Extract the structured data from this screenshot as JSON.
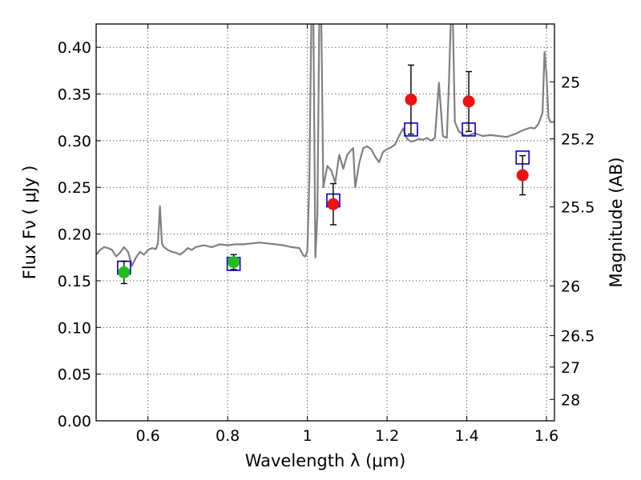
{
  "chart_data": {
    "type": "scatter",
    "xlabel": "Wavelength  λ (μm)",
    "ylabel": "Flux  Fν  ( μJy )",
    "y2label": "Magnitude (AB)",
    "xlim": [
      0.47,
      1.62
    ],
    "ylim": [
      0.0,
      0.425
    ],
    "grid": true,
    "x_ticks": [
      0.6,
      0.8,
      1.0,
      1.2,
      1.4,
      1.6
    ],
    "x_tick_labels": [
      "0.6",
      "0.8",
      "1",
      "1.2",
      "1.4",
      "1.6"
    ],
    "y_ticks": [
      0.0,
      0.05,
      0.1,
      0.15,
      0.2,
      0.25,
      0.3,
      0.35,
      0.4
    ],
    "y_tick_labels": [
      "0.00",
      "0.05",
      "0.10",
      "0.15",
      "0.20",
      "0.25",
      "0.30",
      "0.35",
      "0.40"
    ],
    "mag_ticks": [
      25,
      25.2,
      25.5,
      26,
      26.5,
      27,
      28
    ],
    "mag_tick_labels": [
      "25",
      "25.2",
      "25.5",
      "26",
      "26.5",
      "27",
      "28"
    ],
    "colors": {
      "model": "#808080",
      "green": "#22bb22",
      "red": "#ee1111",
      "square": "#0000cc"
    },
    "series": [
      {
        "name": "model spectrum",
        "kind": "line",
        "x": [
          0.47,
          0.48,
          0.49,
          0.5,
          0.51,
          0.52,
          0.53,
          0.54,
          0.55,
          0.56,
          0.57,
          0.58,
          0.59,
          0.6,
          0.61,
          0.62,
          0.625,
          0.63,
          0.635,
          0.64,
          0.65,
          0.66,
          0.67,
          0.68,
          0.69,
          0.7,
          0.71,
          0.72,
          0.74,
          0.76,
          0.78,
          0.8,
          0.82,
          0.84,
          0.86,
          0.88,
          0.9,
          0.92,
          0.94,
          0.96,
          0.98,
          0.99,
          0.995,
          1.0,
          1.005,
          1.01,
          1.015,
          1.02,
          1.025,
          1.03,
          1.035,
          1.04,
          1.05,
          1.06,
          1.07,
          1.08,
          1.09,
          1.1,
          1.11,
          1.115,
          1.12,
          1.13,
          1.14,
          1.15,
          1.16,
          1.17,
          1.18,
          1.19,
          1.2,
          1.21,
          1.22,
          1.23,
          1.24,
          1.25,
          1.26,
          1.27,
          1.28,
          1.29,
          1.3,
          1.31,
          1.32,
          1.33,
          1.34,
          1.35,
          1.355,
          1.36,
          1.365,
          1.37,
          1.38,
          1.39,
          1.4,
          1.42,
          1.44,
          1.46,
          1.48,
          1.5,
          1.52,
          1.54,
          1.56,
          1.57,
          1.58,
          1.59,
          1.595,
          1.6,
          1.605,
          1.61,
          1.62
        ],
        "y": [
          0.178,
          0.183,
          0.186,
          0.185,
          0.183,
          0.176,
          0.18,
          0.186,
          0.181,
          0.166,
          0.175,
          0.181,
          0.178,
          0.183,
          0.185,
          0.184,
          0.19,
          0.23,
          0.19,
          0.186,
          0.183,
          0.181,
          0.18,
          0.178,
          0.181,
          0.185,
          0.183,
          0.186,
          0.188,
          0.186,
          0.189,
          0.188,
          0.189,
          0.189,
          0.19,
          0.191,
          0.19,
          0.189,
          0.188,
          0.186,
          0.185,
          0.177,
          0.176,
          0.182,
          0.26,
          0.43,
          0.43,
          0.175,
          0.22,
          0.43,
          0.43,
          0.25,
          0.273,
          0.268,
          0.255,
          0.285,
          0.27,
          0.285,
          0.29,
          0.292,
          0.25,
          0.276,
          0.292,
          0.294,
          0.291,
          0.283,
          0.277,
          0.288,
          0.291,
          0.293,
          0.296,
          0.305,
          0.313,
          0.302,
          0.299,
          0.3,
          0.302,
          0.301,
          0.303,
          0.3,
          0.303,
          0.362,
          0.305,
          0.303,
          0.36,
          0.43,
          0.43,
          0.32,
          0.31,
          0.307,
          0.305,
          0.308,
          0.305,
          0.306,
          0.305,
          0.304,
          0.307,
          0.311,
          0.314,
          0.313,
          0.318,
          0.33,
          0.395,
          0.37,
          0.325,
          0.32,
          0.32
        ]
      },
      {
        "name": "green photometry",
        "kind": "points",
        "x": [
          0.54,
          0.815
        ],
        "y": [
          0.159,
          0.17
        ],
        "err": [
          0.012,
          0.008
        ]
      },
      {
        "name": "red photometry",
        "kind": "points",
        "x": [
          1.065,
          1.26,
          1.405,
          1.54
        ],
        "y": [
          0.232,
          0.344,
          0.342,
          0.263
        ],
        "err": [
          0.022,
          0.037,
          0.032,
          0.021
        ]
      },
      {
        "name": "model photometry",
        "kind": "squares",
        "x": [
          0.54,
          0.815,
          1.065,
          1.26,
          1.405,
          1.54
        ],
        "y": [
          0.164,
          0.168,
          0.236,
          0.312,
          0.312,
          0.282
        ]
      }
    ]
  }
}
